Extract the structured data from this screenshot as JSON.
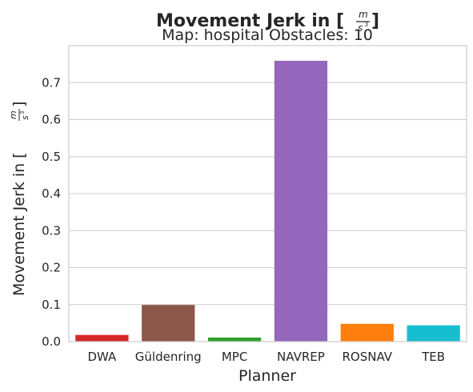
{
  "chart_data": {
    "type": "bar",
    "title": "Movement Jerk in [",
    "title_suffix": "]",
    "subtitle": "Map: hospital Obstacles: 10",
    "unit_fraction": {
      "numerator": "m",
      "denominator": "s",
      "exponent": "3"
    },
    "xlabel": "Planner",
    "ylabel": "Movement Jerk in [",
    "ylabel_suffix": "]",
    "categories": [
      "DWA",
      "Güldenring",
      "MPC",
      "NAVREP",
      "ROSNAV",
      "TEB"
    ],
    "values": [
      0.018,
      0.099,
      0.011,
      0.759,
      0.048,
      0.044
    ],
    "colors": [
      "#d62728",
      "#8c564b",
      "#2ca02c",
      "#9467bd",
      "#ff7f0e",
      "#17becf"
    ],
    "ylim": [
      0,
      0.8
    ],
    "yticks": [
      "0.0",
      "0.1",
      "0.2",
      "0.3",
      "0.4",
      "0.5",
      "0.6",
      "0.7"
    ],
    "grid": true,
    "legend": "none"
  }
}
